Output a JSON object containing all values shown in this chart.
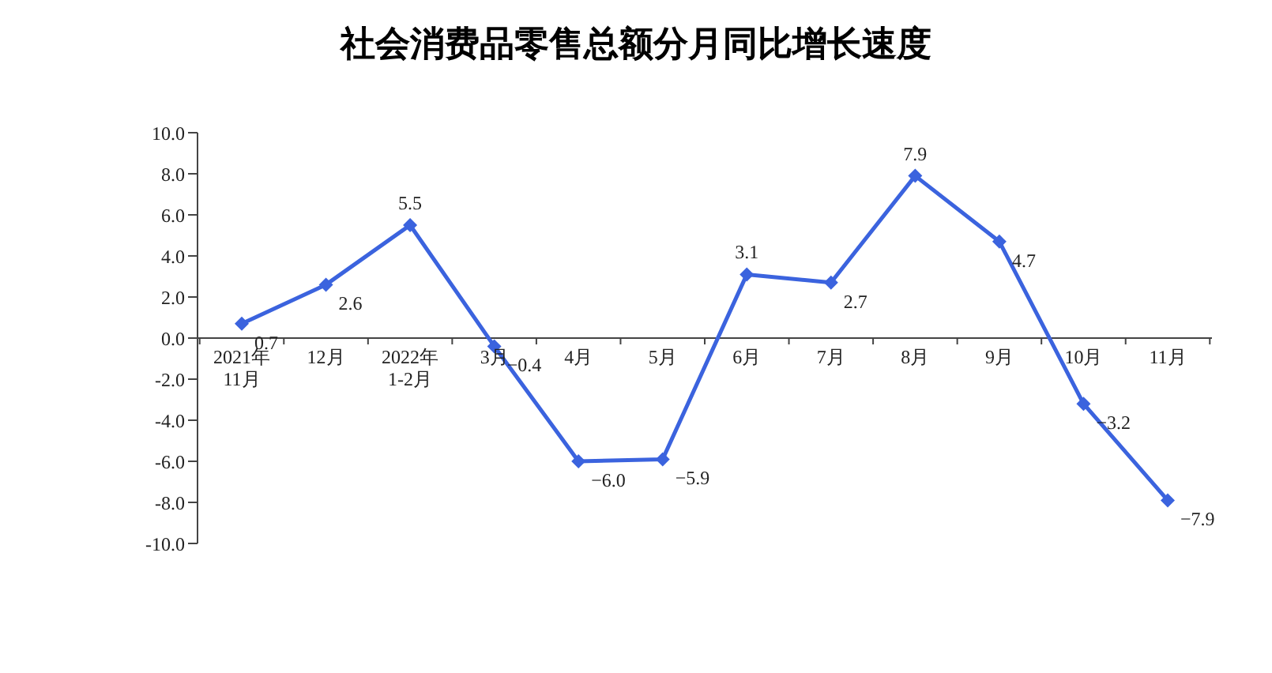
{
  "chart_data": {
    "type": "line",
    "title": "社会消费品零售总额分月同比增长速度",
    "categories": [
      "2021年\n11月",
      "12月",
      "2022年\n1-2月",
      "3月",
      "4月",
      "5月",
      "6月",
      "7月",
      "8月",
      "9月",
      "10月",
      "11月"
    ],
    "series": [
      {
        "color": "#3b63de",
        "values": [
          0.7,
          2.6,
          5.5,
          -0.4,
          -6.0,
          -5.9,
          3.1,
          2.7,
          7.9,
          4.7,
          -3.2,
          -7.9
        ],
        "value_labels": [
          "0.7",
          "2.6",
          "5.5",
          "−0.4",
          "−6.0",
          "−5.9",
          "3.1",
          "2.7",
          "7.9",
          "4.7",
          "−3.2",
          "−7.9"
        ]
      }
    ],
    "ylim": [
      -10,
      10
    ],
    "yticks": [
      {
        "value": -10,
        "label": "-10.0"
      },
      {
        "value": -8,
        "label": "-8.0"
      },
      {
        "value": -6,
        "label": "-6.0"
      },
      {
        "value": -4,
        "label": "-4.0"
      },
      {
        "value": -2,
        "label": "-2.0"
      },
      {
        "value": 0,
        "label": "0.0"
      },
      {
        "value": 2,
        "label": "2.0"
      },
      {
        "value": 4,
        "label": "4.0"
      },
      {
        "value": 6,
        "label": "6.0"
      },
      {
        "value": 8,
        "label": "8.0"
      },
      {
        "value": 10,
        "label": "10.0"
      }
    ],
    "grid": false,
    "legend": false,
    "marker": "diamond",
    "line_style": "solid"
  }
}
